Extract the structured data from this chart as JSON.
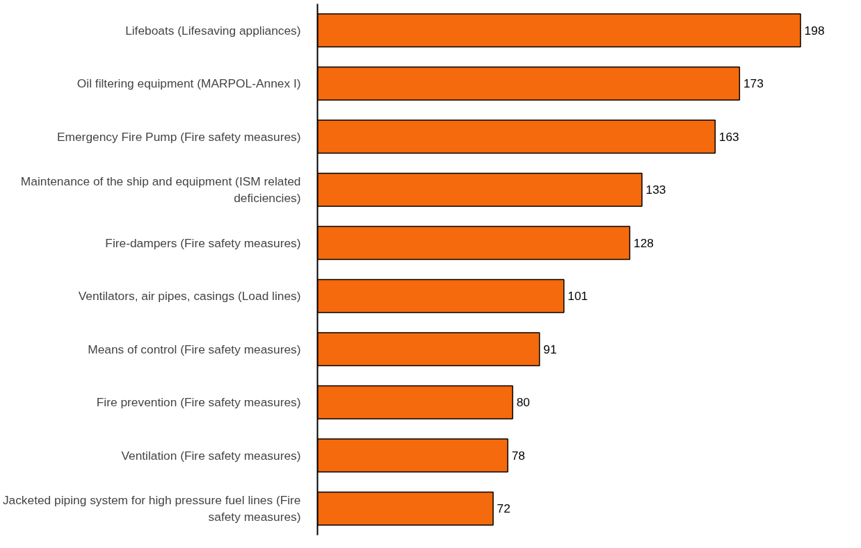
{
  "chart_data": {
    "type": "bar",
    "orientation": "horizontal",
    "data_labels": true,
    "categories": [
      "Lifeboats (Lifesaving appliances)",
      "Oil filtering equipment (MARPOL-Annex I)",
      "Emergency Fire Pump (Fire safety measures)",
      "Maintenance of the ship and equipment (ISM related deficiencies)",
      "Fire-dampers (Fire safety measures)",
      "Ventilators, air pipes, casings (Load lines)",
      "Means of control (Fire safety measures)",
      "Fire prevention (Fire safety measures)",
      "Ventilation (Fire safety measures)",
      "Jacketed piping system for high pressure fuel lines (Fire safety measures)"
    ],
    "series": [
      {
        "color": "#f56a0c",
        "values": [
          198,
          173,
          163,
          133,
          128,
          101,
          91,
          80,
          78,
          72
        ]
      }
    ]
  }
}
